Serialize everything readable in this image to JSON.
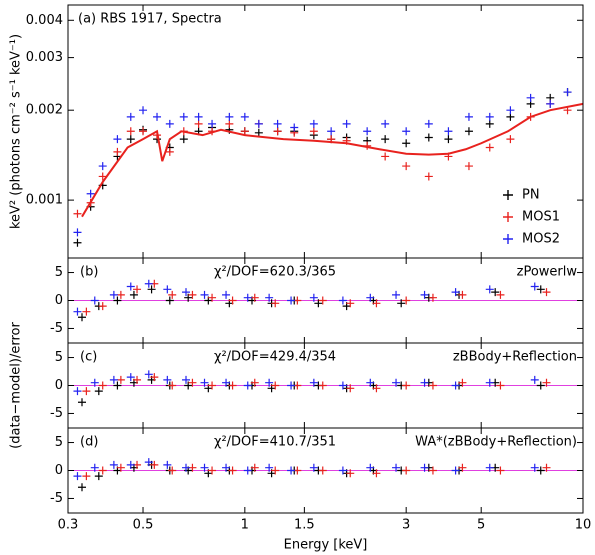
{
  "chart_data": [
    {
      "type": "scatter",
      "title": "(a) RBS 1917, Spectra",
      "ylabel": "keV² (photons cm⁻² s⁻¹ keV⁻¹)",
      "xlog": true,
      "ylog": true,
      "xlim": [
        0.3,
        10
      ],
      "xticks": [
        0.3,
        0.5,
        1,
        1.5,
        3,
        5,
        10
      ],
      "ylim": [
        0.00064,
        0.0045
      ],
      "yticks": [
        0.001,
        0.002,
        0.003,
        0.004
      ],
      "legend": "lower right",
      "series": [
        {
          "name": "PN",
          "color": "#000000",
          "x": [
            0.32,
            0.35,
            0.38,
            0.42,
            0.46,
            0.5,
            0.55,
            0.6,
            0.66,
            0.73,
            0.8,
            0.9,
            1.0,
            1.1,
            1.25,
            1.4,
            1.6,
            1.8,
            2.0,
            2.3,
            2.6,
            3.0,
            3.5,
            4.0,
            4.6,
            5.3,
            6.1,
            7.0,
            8.0,
            9.0
          ],
          "values": [
            0.00072,
            0.00095,
            0.00112,
            0.0014,
            0.0016,
            0.00172,
            0.0016,
            0.0015,
            0.0016,
            0.0017,
            0.00175,
            0.00172,
            0.0017,
            0.00168,
            0.0017,
            0.0017,
            0.00165,
            0.0016,
            0.00162,
            0.00158,
            0.0016,
            0.00155,
            0.00162,
            0.0016,
            0.0017,
            0.0018,
            0.0019,
            0.0021,
            0.0022,
            0.0023
          ]
        },
        {
          "name": "MOS1",
          "color": "#e8221e",
          "x": [
            0.32,
            0.35,
            0.38,
            0.42,
            0.46,
            0.5,
            0.55,
            0.6,
            0.66,
            0.73,
            0.8,
            0.9,
            1.0,
            1.1,
            1.25,
            1.4,
            1.6,
            1.8,
            2.0,
            2.3,
            2.6,
            3.0,
            3.5,
            4.0,
            4.6,
            5.3,
            6.1,
            7.0,
            8.0,
            9.0
          ],
          "values": [
            0.0009,
            0.00098,
            0.0012,
            0.00145,
            0.0017,
            0.0017,
            0.00165,
            0.00145,
            0.0017,
            0.0018,
            0.0017,
            0.0018,
            0.0017,
            0.0018,
            0.0017,
            0.00168,
            0.0017,
            0.0016,
            0.00158,
            0.00152,
            0.0014,
            0.0013,
            0.0012,
            0.0014,
            0.0013,
            0.0015,
            0.0016,
            0.0019,
            0.0021,
            0.002
          ]
        },
        {
          "name": "MOS2",
          "color": "#2323f0",
          "x": [
            0.32,
            0.35,
            0.38,
            0.42,
            0.46,
            0.5,
            0.55,
            0.6,
            0.66,
            0.73,
            0.8,
            0.9,
            1.0,
            1.1,
            1.25,
            1.4,
            1.6,
            1.8,
            2.0,
            2.3,
            2.6,
            3.0,
            3.5,
            4.0,
            4.6,
            5.3,
            6.1,
            7.0,
            8.0,
            9.0
          ],
          "values": [
            0.00078,
            0.00105,
            0.0013,
            0.0016,
            0.0019,
            0.002,
            0.0019,
            0.0018,
            0.0019,
            0.0019,
            0.0018,
            0.0019,
            0.0019,
            0.0018,
            0.0018,
            0.00175,
            0.0018,
            0.0017,
            0.0018,
            0.0017,
            0.0018,
            0.0017,
            0.0018,
            0.0017,
            0.0019,
            0.0019,
            0.002,
            0.0022,
            0.0021,
            0.0023
          ]
        }
      ],
      "model": {
        "color": "#e8221e",
        "x": [
          0.33,
          0.38,
          0.45,
          0.5,
          0.55,
          0.57,
          0.6,
          0.65,
          0.75,
          0.85,
          1.0,
          1.3,
          1.6,
          2.0,
          2.5,
          3.0,
          3.5,
          4.0,
          4.5,
          5.0,
          6.0,
          7.0,
          8.0,
          10
        ],
        "values": [
          0.00088,
          0.00115,
          0.0015,
          0.0016,
          0.0017,
          0.00135,
          0.0016,
          0.0017,
          0.00165,
          0.00172,
          0.00165,
          0.0016,
          0.00158,
          0.00155,
          0.00148,
          0.00143,
          0.00142,
          0.00143,
          0.00148,
          0.00155,
          0.0017,
          0.0019,
          0.002,
          0.0021
        ]
      }
    },
    {
      "type": "scatter",
      "panel_label": "(b)",
      "statistic": "χ²/DOF=620.3/365",
      "model_name": "zPowerlw",
      "xlog": true,
      "xlim": [
        0.3,
        10
      ],
      "xticks": [
        0.3,
        0.5,
        1,
        1.5,
        3,
        5,
        10
      ],
      "ylim": [
        -7.6,
        7.6
      ],
      "yticks": [
        -5,
        0,
        5
      ],
      "hline": 0,
      "hline_color": "#e040e0",
      "series": [
        {
          "color": "#000000",
          "x": [
            0.33,
            0.37,
            0.42,
            0.47,
            0.53,
            0.6,
            0.68,
            0.78,
            0.9,
            1.05,
            1.2,
            1.4,
            1.65,
            2.0,
            2.4,
            2.9,
            3.5,
            4.3,
            5.5,
            7.5
          ],
          "values": [
            -3,
            -1,
            0,
            1,
            2,
            0,
            0.5,
            0,
            -0.5,
            0,
            -0.5,
            0,
            -0.5,
            -1,
            0,
            -0.5,
            0.5,
            1,
            1.5,
            2
          ]
        },
        {
          "color": "#e8221e",
          "x": [
            0.34,
            0.38,
            0.43,
            0.48,
            0.54,
            0.61,
            0.7,
            0.8,
            0.92,
            1.07,
            1.23,
            1.43,
            1.7,
            2.05,
            2.45,
            3.0,
            3.6,
            4.4,
            5.7,
            7.8
          ],
          "values": [
            -2,
            -1,
            1,
            2,
            3,
            1,
            1,
            0.5,
            0,
            0.5,
            -0.5,
            0,
            0,
            -0.5,
            -0.5,
            0,
            0.5,
            1,
            1,
            1.5
          ]
        },
        {
          "color": "#2323f0",
          "x": [
            0.32,
            0.36,
            0.41,
            0.46,
            0.52,
            0.59,
            0.67,
            0.76,
            0.88,
            1.02,
            1.18,
            1.37,
            1.6,
            1.95,
            2.35,
            2.8,
            3.4,
            4.2,
            5.3,
            7.2
          ],
          "values": [
            -2,
            0,
            1,
            2.5,
            3,
            2,
            1.5,
            1,
            1,
            0.5,
            0.5,
            0,
            0.5,
            0,
            0.5,
            1,
            1,
            1.5,
            2,
            2.5
          ]
        }
      ]
    },
    {
      "type": "scatter",
      "panel_label": "(c)",
      "statistic": "χ²/DOF=429.4/354",
      "model_name": "zBBody+Reflection",
      "ylabel": "(data−model)/error",
      "xlog": true,
      "xlim": [
        0.3,
        10
      ],
      "xticks": [
        0.3,
        0.5,
        1,
        1.5,
        3,
        5,
        10
      ],
      "ylim": [
        -7.6,
        7.6
      ],
      "yticks": [
        -5,
        0,
        5
      ],
      "hline": 0,
      "hline_color": "#e040e0",
      "series": [
        {
          "color": "#000000",
          "x": [
            0.33,
            0.37,
            0.42,
            0.47,
            0.53,
            0.6,
            0.68,
            0.78,
            0.9,
            1.05,
            1.2,
            1.4,
            1.65,
            2.0,
            2.4,
            2.9,
            3.5,
            4.3,
            5.5,
            7.5
          ],
          "values": [
            -3,
            -1,
            0,
            0.5,
            1,
            0,
            0,
            -0.5,
            0,
            0,
            -0.5,
            0,
            0,
            -0.5,
            0,
            0,
            0.5,
            0,
            0.5,
            0
          ]
        },
        {
          "color": "#e8221e",
          "x": [
            0.34,
            0.38,
            0.43,
            0.48,
            0.54,
            0.61,
            0.7,
            0.8,
            0.92,
            1.07,
            1.23,
            1.43,
            1.7,
            2.05,
            2.45,
            3.0,
            3.6,
            4.4,
            5.7,
            7.8
          ],
          "values": [
            -1,
            0,
            1,
            1,
            1.5,
            0,
            0.5,
            0,
            0,
            0.5,
            0,
            0,
            0,
            -0.5,
            -0.5,
            0,
            0,
            0.5,
            0,
            0.5
          ]
        },
        {
          "color": "#2323f0",
          "x": [
            0.32,
            0.36,
            0.41,
            0.46,
            0.52,
            0.59,
            0.67,
            0.76,
            0.88,
            1.02,
            1.18,
            1.37,
            1.6,
            1.95,
            2.35,
            2.8,
            3.4,
            4.2,
            5.3,
            7.2
          ],
          "values": [
            -1,
            0.5,
            1,
            1.5,
            2,
            1,
            1,
            0.5,
            0.5,
            0,
            0.5,
            0,
            0.5,
            0,
            0.5,
            0.5,
            0.5,
            0,
            0.5,
            1
          ]
        }
      ]
    },
    {
      "type": "scatter",
      "panel_label": "(d)",
      "statistic": "χ²/DOF=410.7/351",
      "model_name": "WA*(zBBody+Reflection)",
      "xlabel": "Energy [keV]",
      "xlog": true,
      "xlim": [
        0.3,
        10
      ],
      "xticks": [
        0.3,
        0.5,
        1,
        1.5,
        3,
        5,
        10
      ],
      "ylim": [
        -7.6,
        7.6
      ],
      "yticks": [
        -5,
        0,
        5
      ],
      "hline": 0,
      "hline_color": "#e040e0",
      "series": [
        {
          "color": "#000000",
          "x": [
            0.33,
            0.37,
            0.42,
            0.47,
            0.53,
            0.6,
            0.68,
            0.78,
            0.9,
            1.05,
            1.2,
            1.4,
            1.65,
            2.0,
            2.4,
            2.9,
            3.5,
            4.3,
            5.5,
            7.5
          ],
          "values": [
            -3,
            -1,
            0,
            0.5,
            1,
            0,
            0,
            -0.5,
            0,
            0,
            -0.5,
            0,
            0,
            -0.5,
            0,
            0,
            0.5,
            0,
            0.5,
            0
          ]
        },
        {
          "color": "#e8221e",
          "x": [
            0.34,
            0.38,
            0.43,
            0.48,
            0.54,
            0.61,
            0.7,
            0.8,
            0.92,
            1.07,
            1.23,
            1.43,
            1.7,
            2.05,
            2.45,
            3.0,
            3.6,
            4.4,
            5.7,
            7.8
          ],
          "values": [
            -1,
            0,
            0.5,
            1,
            1,
            0,
            0.5,
            0,
            0,
            0.5,
            0,
            0,
            0,
            -0.5,
            -0.5,
            0,
            0,
            0.5,
            0,
            0.5
          ]
        },
        {
          "color": "#2323f0",
          "x": [
            0.32,
            0.36,
            0.41,
            0.46,
            0.52,
            0.59,
            0.67,
            0.76,
            0.88,
            1.02,
            1.18,
            1.37,
            1.6,
            1.95,
            2.35,
            2.8,
            3.4,
            4.2,
            5.3,
            7.2
          ],
          "values": [
            -1,
            0.5,
            1,
            1,
            1.5,
            1,
            0.5,
            0.5,
            0.5,
            0,
            0.5,
            0,
            0.5,
            0,
            0.5,
            0.5,
            0.5,
            0,
            0.5,
            0.5
          ]
        }
      ]
    }
  ]
}
